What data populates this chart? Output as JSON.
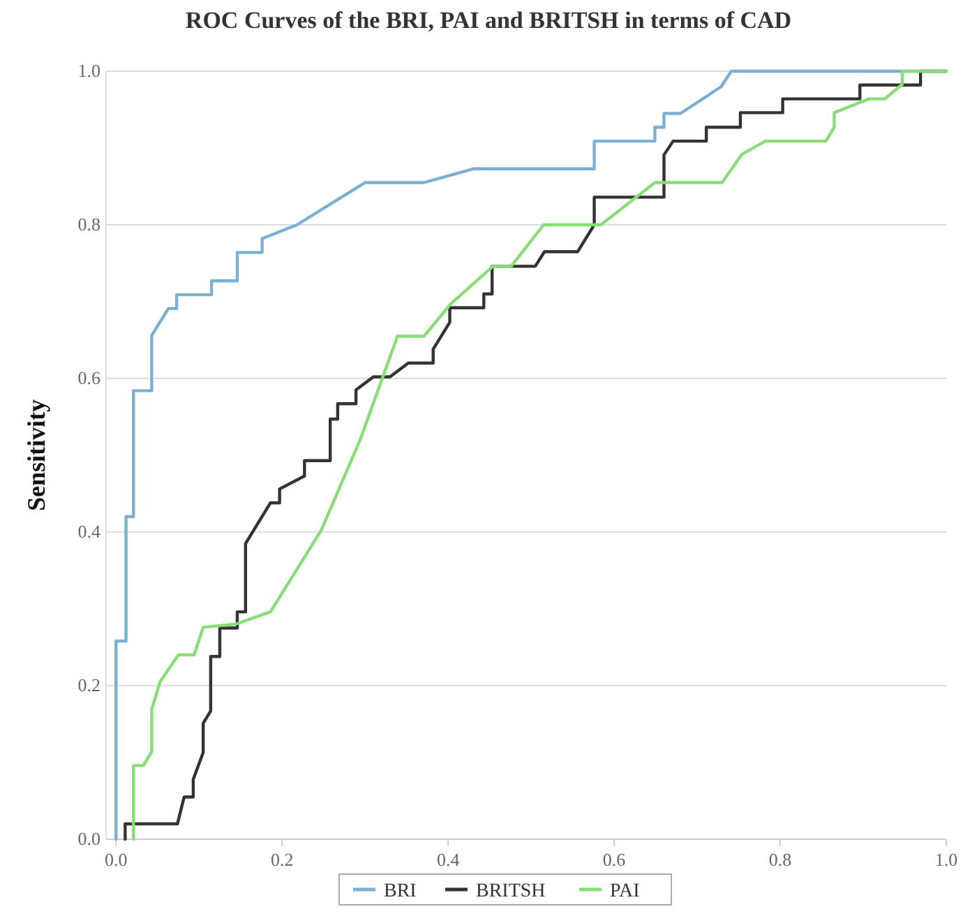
{
  "chart_data": {
    "type": "line",
    "title": "ROC Curves of the BRI, PAI and BRITSH in terms of CAD",
    "ylabel": "Sensitivity",
    "xlim": [
      -0.012,
      1
    ],
    "ylim": [
      0,
      1
    ],
    "xticks": [
      {
        "value": 0,
        "label": "0.0"
      },
      0.2,
      0.4,
      0.6,
      0.8,
      {
        "value": 1,
        "label": "1.0"
      }
    ],
    "yticks": [
      {
        "value": 0,
        "label": "0.0"
      },
      0.2,
      0.4,
      0.6,
      0.8,
      {
        "value": 1,
        "label": "1.0"
      }
    ],
    "grid": "y",
    "legend": "bottom",
    "marker": "none",
    "line_style": "solid",
    "series": [
      {
        "name": "BRI",
        "color": "#7bafd4",
        "x": [
          0,
          0,
          0.012,
          0.012,
          0.021,
          0.021,
          0.043,
          0.043,
          0.063,
          0.073,
          0.073,
          0.115,
          0.115,
          0.146,
          0.146,
          0.176,
          0.176,
          0.218,
          0.3,
          0.371,
          0.431,
          0.576,
          0.576,
          0.649,
          0.649,
          0.66,
          0.66,
          0.68,
          0.729,
          0.741,
          1
        ],
        "values": [
          0,
          0.258,
          0.258,
          0.42,
          0.42,
          0.584,
          0.584,
          0.656,
          0.691,
          0.691,
          0.709,
          0.709,
          0.727,
          0.727,
          0.764,
          0.764,
          0.782,
          0.8,
          0.855,
          0.855,
          0.873,
          0.873,
          0.909,
          0.909,
          0.927,
          0.927,
          0.945,
          0.945,
          0.98,
          1,
          1
        ]
      },
      {
        "name": "BRITSH",
        "color": "#333333",
        "x": [
          0.011,
          0.011,
          0.074,
          0.082,
          0.093,
          0.093,
          0.105,
          0.105,
          0.114,
          0.114,
          0.125,
          0.125,
          0.146,
          0.146,
          0.156,
          0.156,
          0.186,
          0.197,
          0.197,
          0.227,
          0.227,
          0.258,
          0.258,
          0.267,
          0.267,
          0.289,
          0.289,
          0.31,
          0.33,
          0.352,
          0.382,
          0.382,
          0.402,
          0.402,
          0.443,
          0.443,
          0.453,
          0.453,
          0.505,
          0.516,
          0.556,
          0.576,
          0.576,
          0.66,
          0.66,
          0.671,
          0.711,
          0.711,
          0.752,
          0.752,
          0.803,
          0.803,
          0.896,
          0.896,
          0.969,
          0.969,
          1
        ],
        "values": [
          0,
          0.02,
          0.02,
          0.055,
          0.055,
          0.078,
          0.113,
          0.151,
          0.167,
          0.238,
          0.238,
          0.275,
          0.275,
          0.296,
          0.296,
          0.385,
          0.438,
          0.438,
          0.456,
          0.473,
          0.493,
          0.493,
          0.547,
          0.547,
          0.567,
          0.567,
          0.585,
          0.602,
          0.602,
          0.62,
          0.62,
          0.638,
          0.673,
          0.692,
          0.692,
          0.71,
          0.71,
          0.746,
          0.746,
          0.765,
          0.765,
          0.8,
          0.836,
          0.836,
          0.891,
          0.909,
          0.909,
          0.927,
          0.927,
          0.946,
          0.946,
          0.964,
          0.964,
          0.982,
          0.982,
          1,
          1
        ]
      },
      {
        "name": "PAI",
        "color": "#88dd77",
        "x": [
          0.021,
          0.021,
          0.033,
          0.043,
          0.043,
          0.053,
          0.075,
          0.094,
          0.105,
          0.144,
          0.186,
          0.247,
          0.294,
          0.339,
          0.371,
          0.403,
          0.454,
          0.476,
          0.515,
          0.584,
          0.649,
          0.73,
          0.754,
          0.782,
          0.855,
          0.865,
          0.865,
          0.907,
          0.926,
          0.947,
          0.947,
          1
        ],
        "values": [
          0,
          0.096,
          0.096,
          0.114,
          0.169,
          0.205,
          0.24,
          0.24,
          0.276,
          0.28,
          0.296,
          0.402,
          0.52,
          0.655,
          0.655,
          0.697,
          0.746,
          0.746,
          0.8,
          0.8,
          0.855,
          0.855,
          0.892,
          0.909,
          0.909,
          0.927,
          0.946,
          0.964,
          0.964,
          0.983,
          1,
          1
        ]
      }
    ]
  }
}
